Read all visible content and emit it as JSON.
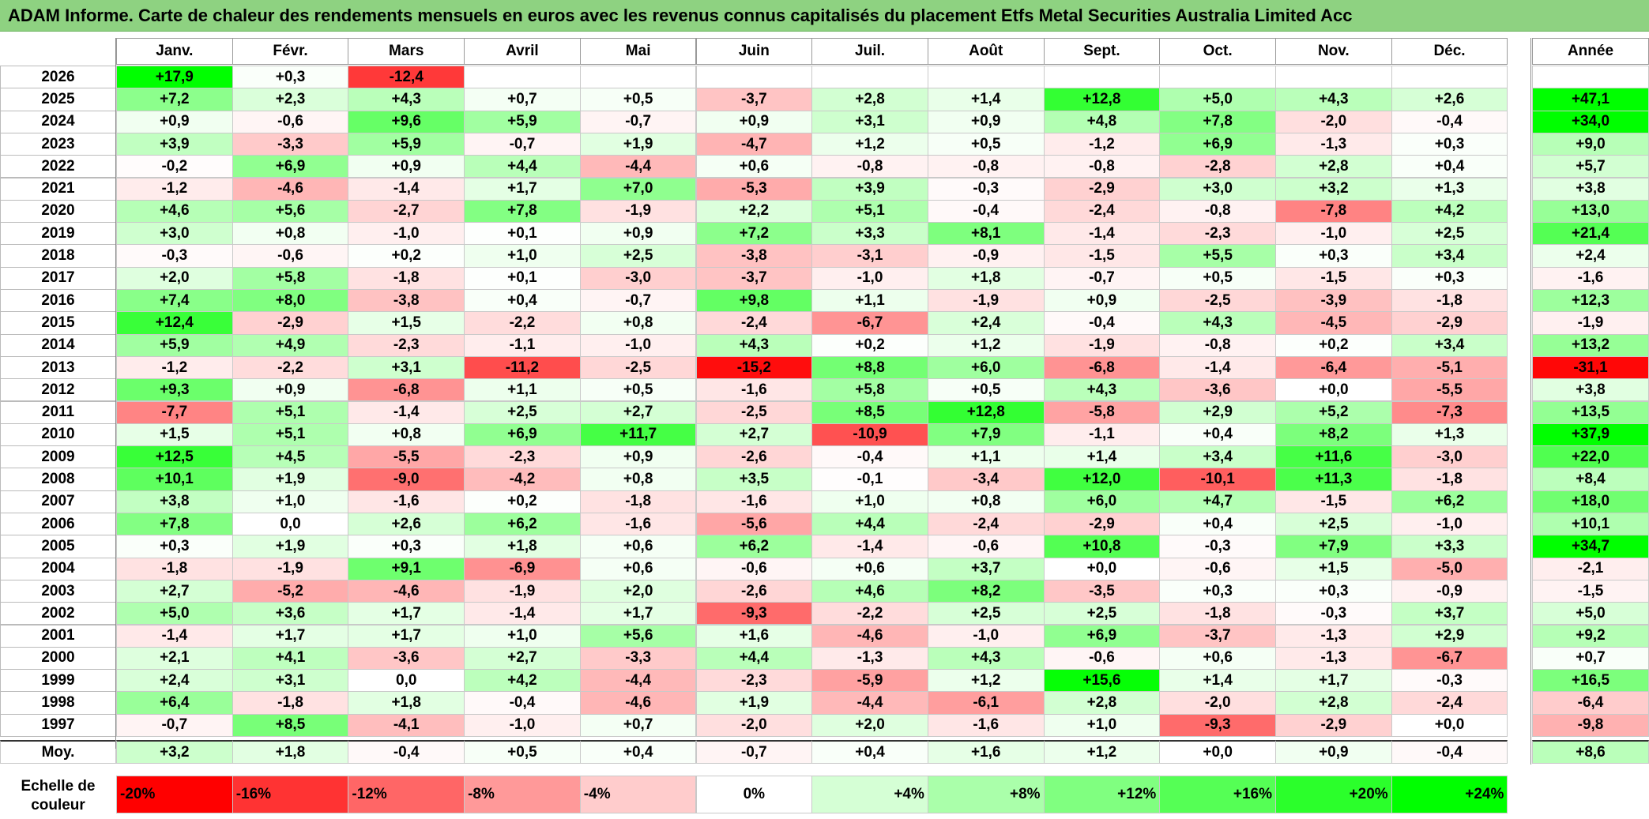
{
  "title": "ADAM Informe. Carte de chaleur des rendements mensuels en euros avec les revenus connus capitalisés du placement Etfs Metal Securities Australia Limited Acc",
  "colors": {
    "title_bg": "#8ed281",
    "neg_max": "#ff0000",
    "pos_max": "#00ff00",
    "neutral": "#ffffff"
  },
  "chart_data": {
    "type": "heatmap",
    "title": "ADAM Informe. Carte de chaleur des rendements mensuels en euros avec les revenus connus capitalisés du placement Etfs Metal Securities Australia Limited Acc",
    "months": [
      "Janv.",
      "Févr.",
      "Mars",
      "Avril",
      "Mai",
      "Juin",
      "Juil.",
      "Août",
      "Sept.",
      "Oct.",
      "Nov.",
      "Déc."
    ],
    "year_header": "Année",
    "rows": [
      {
        "year": "2026",
        "values": [
          "+17,9",
          "+0,3",
          "-12,4",
          "",
          "",
          "",
          "",
          "",
          "",
          "",
          "",
          ""
        ],
        "annual": ""
      },
      {
        "year": "2025",
        "values": [
          "+7,2",
          "+2,3",
          "+4,3",
          "+0,7",
          "+0,5",
          "-3,7",
          "+2,8",
          "+1,4",
          "+12,8",
          "+5,0",
          "+4,3",
          "+2,6"
        ],
        "annual": "+47,1"
      },
      {
        "year": "2024",
        "values": [
          "+0,9",
          "-0,6",
          "+9,6",
          "+5,9",
          "-0,7",
          "+0,9",
          "+3,1",
          "+0,9",
          "+4,8",
          "+7,8",
          "-2,0",
          "-0,4"
        ],
        "annual": "+34,0"
      },
      {
        "year": "2023",
        "values": [
          "+3,9",
          "-3,3",
          "+5,9",
          "-0,7",
          "+1,9",
          "-4,7",
          "+1,2",
          "+0,5",
          "-1,2",
          "+6,9",
          "-1,3",
          "+0,3"
        ],
        "annual": "+9,0"
      },
      {
        "year": "2022",
        "values": [
          "-0,2",
          "+6,9",
          "+0,9",
          "+4,4",
          "-4,4",
          "+0,6",
          "-0,8",
          "-0,8",
          "-0,8",
          "-2,8",
          "+2,8",
          "+0,4"
        ],
        "annual": "+5,7"
      },
      {
        "year": "2021",
        "values": [
          "-1,2",
          "-4,6",
          "-1,4",
          "+1,7",
          "+7,0",
          "-5,3",
          "+3,9",
          "-0,3",
          "-2,9",
          "+3,0",
          "+3,2",
          "+1,3"
        ],
        "annual": "+3,8"
      },
      {
        "year": "2020",
        "values": [
          "+4,6",
          "+5,6",
          "-2,7",
          "+7,8",
          "-1,9",
          "+2,2",
          "+5,1",
          "-0,4",
          "-2,4",
          "-0,8",
          "-7,8",
          "+4,2"
        ],
        "annual": "+13,0"
      },
      {
        "year": "2019",
        "values": [
          "+3,0",
          "+0,8",
          "-1,0",
          "+0,1",
          "+0,9",
          "+7,2",
          "+3,3",
          "+8,1",
          "-1,4",
          "-2,3",
          "-1,0",
          "+2,5"
        ],
        "annual": "+21,4"
      },
      {
        "year": "2018",
        "values": [
          "-0,3",
          "-0,6",
          "+0,2",
          "+1,0",
          "+2,5",
          "-3,8",
          "-3,1",
          "-0,9",
          "-1,5",
          "+5,5",
          "+0,3",
          "+3,4"
        ],
        "annual": "+2,4"
      },
      {
        "year": "2017",
        "values": [
          "+2,0",
          "+5,8",
          "-1,8",
          "+0,1",
          "-3,0",
          "-3,7",
          "-1,0",
          "+1,8",
          "-0,7",
          "+0,5",
          "-1,5",
          "+0,3"
        ],
        "annual": "-1,6"
      },
      {
        "year": "2016",
        "values": [
          "+7,4",
          "+8,0",
          "-3,8",
          "+0,4",
          "-0,7",
          "+9,8",
          "+1,1",
          "-1,9",
          "+0,9",
          "-2,5",
          "-3,9",
          "-1,8"
        ],
        "annual": "+12,3"
      },
      {
        "year": "2015",
        "values": [
          "+12,4",
          "-2,9",
          "+1,5",
          "-2,2",
          "+0,8",
          "-2,4",
          "-6,7",
          "+2,4",
          "-0,4",
          "+4,3",
          "-4,5",
          "-2,9"
        ],
        "annual": "-1,9"
      },
      {
        "year": "2014",
        "values": [
          "+5,9",
          "+4,9",
          "-2,3",
          "-1,1",
          "-1,0",
          "+4,3",
          "+0,2",
          "+1,2",
          "-1,9",
          "-0,8",
          "+0,2",
          "+3,4"
        ],
        "annual": "+13,2"
      },
      {
        "year": "2013",
        "values": [
          "-1,2",
          "-2,2",
          "+3,1",
          "-11,2",
          "-2,5",
          "-15,2",
          "+8,8",
          "+6,0",
          "-6,8",
          "-1,4",
          "-6,4",
          "-5,1"
        ],
        "annual": "-31,1"
      },
      {
        "year": "2012",
        "values": [
          "+9,3",
          "+0,9",
          "-6,8",
          "+1,1",
          "+0,5",
          "-1,6",
          "+5,8",
          "+0,5",
          "+4,3",
          "-3,6",
          "+0,0",
          "-5,5"
        ],
        "annual": "+3,8"
      },
      {
        "year": "2011",
        "values": [
          "-7,7",
          "+5,1",
          "-1,4",
          "+2,5",
          "+2,7",
          "-2,5",
          "+8,5",
          "+12,8",
          "-5,8",
          "+2,9",
          "+5,2",
          "-7,3"
        ],
        "annual": "+13,5"
      },
      {
        "year": "2010",
        "values": [
          "+1,5",
          "+5,1",
          "+0,8",
          "+6,9",
          "+11,7",
          "+2,7",
          "-10,9",
          "+7,9",
          "-1,1",
          "+0,4",
          "+8,2",
          "+1,3"
        ],
        "annual": "+37,9"
      },
      {
        "year": "2009",
        "values": [
          "+12,5",
          "+4,5",
          "-5,5",
          "-2,3",
          "+0,9",
          "-2,6",
          "-0,4",
          "+1,1",
          "+1,4",
          "+3,4",
          "+11,6",
          "-3,0"
        ],
        "annual": "+22,0"
      },
      {
        "year": "2008",
        "values": [
          "+10,1",
          "+1,9",
          "-9,0",
          "-4,2",
          "+0,8",
          "+3,5",
          "-0,1",
          "-3,4",
          "+12,0",
          "-10,1",
          "+11,3",
          "-1,8"
        ],
        "annual": "+8,4"
      },
      {
        "year": "2007",
        "values": [
          "+3,8",
          "+1,0",
          "-1,6",
          "+0,2",
          "-1,8",
          "-1,6",
          "+1,0",
          "+0,8",
          "+6,0",
          "+4,7",
          "-1,5",
          "+6,2"
        ],
        "annual": "+18,0"
      },
      {
        "year": "2006",
        "values": [
          "+7,8",
          "0,0",
          "+2,6",
          "+6,2",
          "-1,6",
          "-5,6",
          "+4,4",
          "-2,4",
          "-2,9",
          "+0,4",
          "+2,5",
          "-1,0"
        ],
        "annual": "+10,1"
      },
      {
        "year": "2005",
        "values": [
          "+0,3",
          "+1,9",
          "+0,3",
          "+1,8",
          "+0,6",
          "+6,2",
          "-1,4",
          "-0,6",
          "+10,8",
          "-0,3",
          "+7,9",
          "+3,3"
        ],
        "annual": "+34,7"
      },
      {
        "year": "2004",
        "values": [
          "-1,8",
          "-1,9",
          "+9,1",
          "-6,9",
          "+0,6",
          "-0,6",
          "+0,6",
          "+3,7",
          "+0,0",
          "-0,6",
          "+1,5",
          "-5,0"
        ],
        "annual": "-2,1"
      },
      {
        "year": "2003",
        "values": [
          "+2,7",
          "-5,2",
          "-4,6",
          "-1,9",
          "+2,0",
          "-2,6",
          "+4,6",
          "+8,2",
          "-3,5",
          "+0,3",
          "+0,3",
          "-0,9"
        ],
        "annual": "-1,5"
      },
      {
        "year": "2002",
        "values": [
          "+5,0",
          "+3,6",
          "+1,7",
          "-1,4",
          "+1,7",
          "-9,3",
          "-2,2",
          "+2,5",
          "+2,5",
          "-1,8",
          "-0,3",
          "+3,7"
        ],
        "annual": "+5,0"
      },
      {
        "year": "2001",
        "values": [
          "-1,4",
          "+1,7",
          "+1,7",
          "+1,0",
          "+5,6",
          "+1,6",
          "-4,6",
          "-1,0",
          "+6,9",
          "-3,7",
          "-1,3",
          "+2,9"
        ],
        "annual": "+9,2"
      },
      {
        "year": "2000",
        "values": [
          "+2,1",
          "+4,1",
          "-3,6",
          "+2,7",
          "-3,3",
          "+4,4",
          "-1,3",
          "+4,3",
          "-0,6",
          "+0,6",
          "-1,3",
          "-6,7"
        ],
        "annual": "+0,7"
      },
      {
        "year": "1999",
        "values": [
          "+2,4",
          "+3,1",
          "0,0",
          "+4,2",
          "-4,4",
          "-2,3",
          "-5,9",
          "+1,2",
          "+15,6",
          "+1,4",
          "+1,7",
          "-0,3"
        ],
        "annual": "+16,5"
      },
      {
        "year": "1998",
        "values": [
          "+6,4",
          "-1,8",
          "+1,8",
          "-0,4",
          "-4,6",
          "+1,9",
          "-4,4",
          "-6,1",
          "+2,8",
          "-2,0",
          "+2,8",
          "-2,4"
        ],
        "annual": "-6,4"
      },
      {
        "year": "1997",
        "values": [
          "-0,7",
          "+8,5",
          "-4,1",
          "-1,0",
          "+0,7",
          "-2,0",
          "+2,0",
          "-1,6",
          "+1,0",
          "-9,3",
          "-2,9",
          "+0,0"
        ],
        "annual": "-9,8"
      }
    ],
    "average": {
      "label": "Moy.",
      "values": [
        "+3,2",
        "+1,8",
        "-0,4",
        "+0,5",
        "+0,4",
        "-0,7",
        "+0,4",
        "+1,6",
        "+1,2",
        "+0,0",
        "+0,9",
        "-0,4"
      ],
      "annual": "+8,6"
    },
    "scale": {
      "label": "Echelle de couleur",
      "steps": [
        {
          "text": "-20%",
          "value": -20
        },
        {
          "text": "-16%",
          "value": -16
        },
        {
          "text": "-12%",
          "value": -12
        },
        {
          "text": "-8%",
          "value": -8
        },
        {
          "text": "-4%",
          "value": -4
        },
        {
          "text": "0%",
          "value": 0
        },
        {
          "text": "+4%",
          "value": 4
        },
        {
          "text": "+8%",
          "value": 8
        },
        {
          "text": "+12%",
          "value": 12
        },
        {
          "text": "+16%",
          "value": 16
        },
        {
          "text": "+20%",
          "value": 20
        },
        {
          "text": "+24%",
          "value": 24
        }
      ]
    }
  }
}
